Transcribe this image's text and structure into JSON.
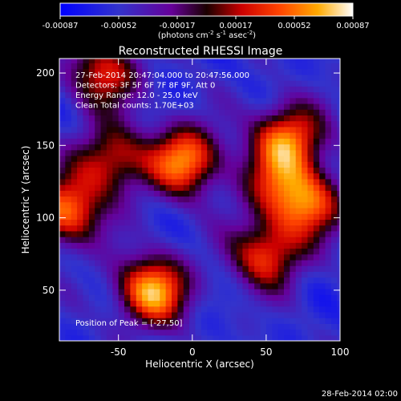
{
  "chart_data": {
    "type": "heatmap",
    "title": "Reconstructed RHESSI Image",
    "xlabel": "Heliocentric X (arcsec)",
    "ylabel": "Heliocentric Y (arcsec)",
    "xlim": [
      -90,
      100
    ],
    "ylim": [
      15,
      210
    ],
    "x_ticks": [
      -50,
      0,
      50,
      100
    ],
    "y_ticks": [
      50,
      100,
      150,
      200
    ],
    "colorbar": {
      "ticks": [
        "-0.00087",
        "-0.00052",
        "-0.00017",
        "0.00017",
        "0.00052",
        "0.00087"
      ],
      "range": [
        -0.00087,
        0.00087
      ],
      "unit_label": "(photons cm",
      "unit_exp1": "-2",
      "unit_mid": " s",
      "unit_exp2": "-1",
      "unit_mid2": " asec",
      "unit_exp3": "-2",
      "unit_end": ")"
    },
    "annotations": [
      "27-Feb-2014 20:47:04.000 to 20:47:56.000",
      "Detectors: 3F 5F 6F 7F 8F 9F, Att 0",
      "Energy Range: 12.0 - 25.0 keV",
      "Clean     Total counts: 1.70E+03"
    ],
    "peak_label": "Position of Peak = [-27,50]",
    "sources": [
      {
        "x": -27,
        "y": 50,
        "amplitude": 0.00087
      },
      {
        "x": -5,
        "y": 140,
        "amplitude": 0.0008
      },
      {
        "x": -55,
        "y": 140,
        "amplitude": 0.0006
      },
      {
        "x": -85,
        "y": 105,
        "amplitude": 0.00075
      },
      {
        "x": -60,
        "y": 200,
        "amplitude": 0.0006
      },
      {
        "x": 65,
        "y": 155,
        "amplitude": 0.00075
      },
      {
        "x": 78,
        "y": 110,
        "amplitude": 0.0007
      },
      {
        "x": 50,
        "y": 75,
        "amplitude": 0.00065
      },
      {
        "x": 55,
        "y": 125,
        "amplitude": 0.0004
      }
    ]
  },
  "footer_timestamp": "28-Feb-2014 02:00"
}
